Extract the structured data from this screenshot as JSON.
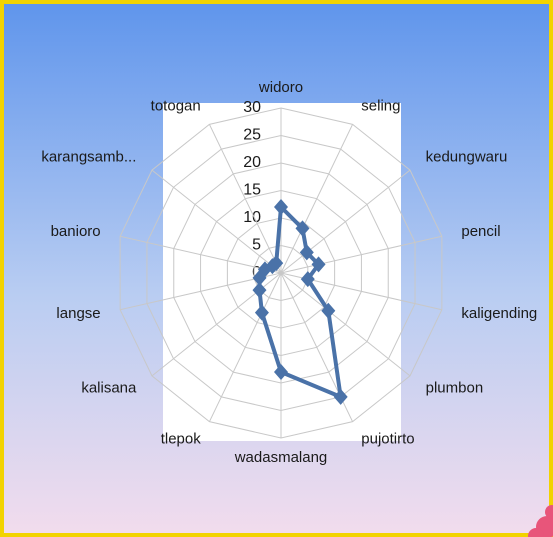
{
  "chart_data": {
    "type": "radar",
    "categories": [
      "widoro",
      "seling",
      "kedungwaru",
      "pencil",
      "kaligending",
      "plumbon",
      "pujotirto",
      "wadasmalang",
      "tlepok",
      "kalisana",
      "langse",
      "banioro",
      "karangsamb...",
      "totogan"
    ],
    "values": [
      12,
      9,
      6,
      7,
      5,
      11,
      25,
      18,
      8,
      5,
      4,
      3,
      2,
      2
    ],
    "color": "#4a72a8",
    "rlim": [
      0,
      30
    ],
    "rticks": [
      0,
      5,
      10,
      15,
      20,
      25,
      30
    ],
    "grid": true
  }
}
